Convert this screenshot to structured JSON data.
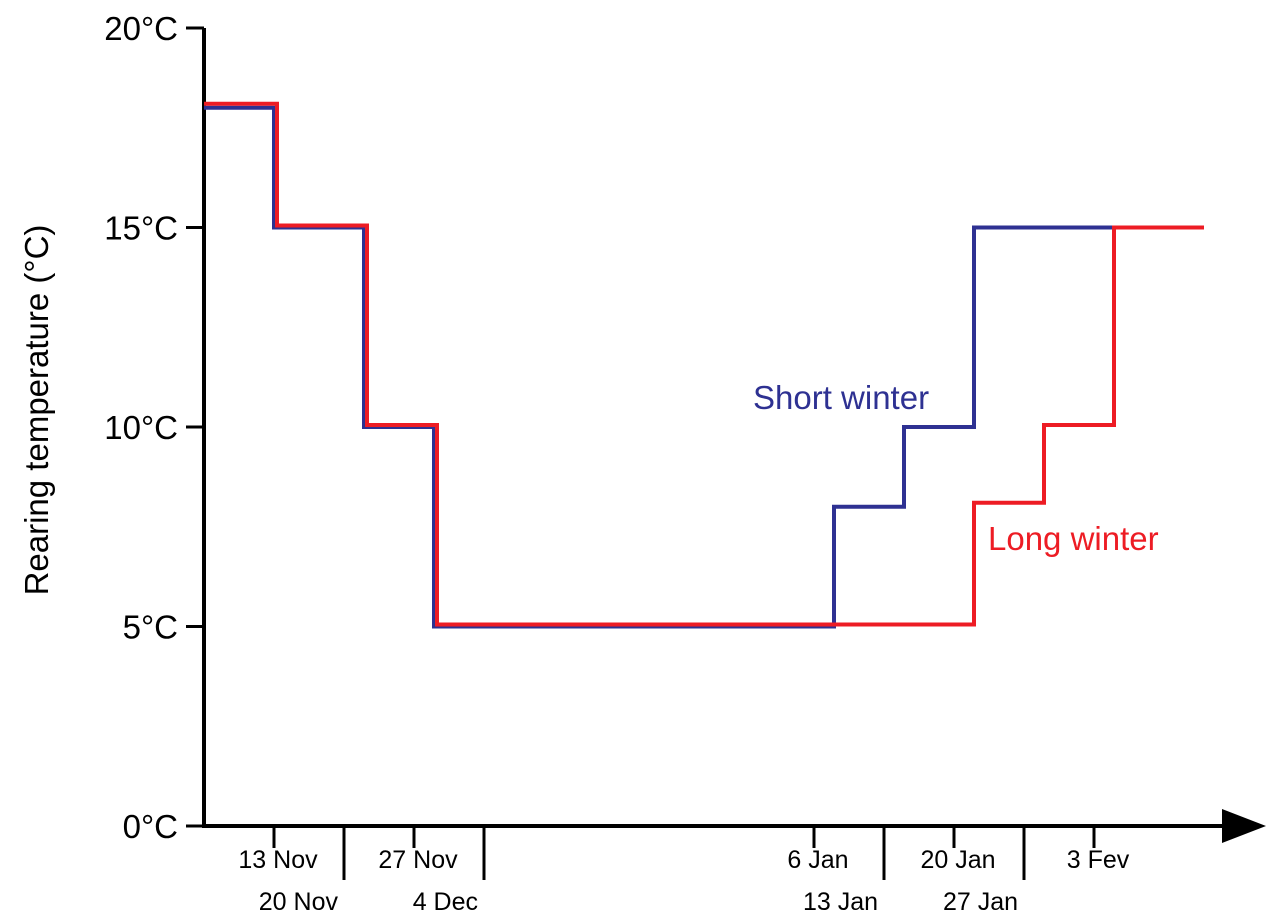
{
  "chart_data": {
    "type": "line",
    "step": true,
    "ylabel": "Rearing temperature (°C)",
    "xlabel": "",
    "ylim": [
      0,
      20
    ],
    "yticks": [
      {
        "value": 0,
        "label": "0°C"
      },
      {
        "value": 5,
        "label": "5°C"
      },
      {
        "value": 10,
        "label": "10°C"
      },
      {
        "value": 15,
        "label": "15°C"
      },
      {
        "value": 20,
        "label": "20°C"
      }
    ],
    "xrange": [
      -10,
      104
    ],
    "xticks": [
      {
        "day": 0,
        "label": "13 Nov",
        "row": "upper"
      },
      {
        "day": 7,
        "label": "20 Nov",
        "row": "lower"
      },
      {
        "day": 14,
        "label": "27 Nov",
        "row": "upper"
      },
      {
        "day": 21,
        "label": "4 Dec",
        "row": "lower"
      },
      {
        "day": 54,
        "label": "6 Jan",
        "row": "upper"
      },
      {
        "day": 61,
        "label": "13 Jan",
        "row": "lower"
      },
      {
        "day": 68,
        "label": "20 Jan",
        "row": "upper"
      },
      {
        "day": 75,
        "label": "27 Jan",
        "row": "lower"
      },
      {
        "day": 82,
        "label": "3 Fev",
        "row": "upper"
      }
    ],
    "series": [
      {
        "name": "Short winter",
        "color": "#2e3192",
        "points": [
          [
            -7,
            18
          ],
          [
            0,
            18
          ],
          [
            0,
            15
          ],
          [
            9,
            15
          ],
          [
            9,
            10
          ],
          [
            16,
            10
          ],
          [
            16,
            5
          ],
          [
            56,
            5
          ],
          [
            56,
            8
          ],
          [
            63,
            8
          ],
          [
            63,
            10
          ],
          [
            70,
            10
          ],
          [
            70,
            15
          ],
          [
            93,
            15
          ]
        ]
      },
      {
        "name": "Long winter",
        "color": "#ed1c24",
        "points": [
          [
            -7,
            18.1
          ],
          [
            0.3,
            18.1
          ],
          [
            0.3,
            15.05
          ],
          [
            9.3,
            15.05
          ],
          [
            9.3,
            10.05
          ],
          [
            16.3,
            10.05
          ],
          [
            16.3,
            5.05
          ],
          [
            70,
            5.05
          ],
          [
            70,
            8.1
          ],
          [
            77,
            8.1
          ],
          [
            77,
            10.05
          ],
          [
            84,
            10.05
          ],
          [
            84,
            15
          ],
          [
            93,
            15
          ]
        ]
      }
    ],
    "grid": false,
    "legend": "inline labels near lines"
  }
}
